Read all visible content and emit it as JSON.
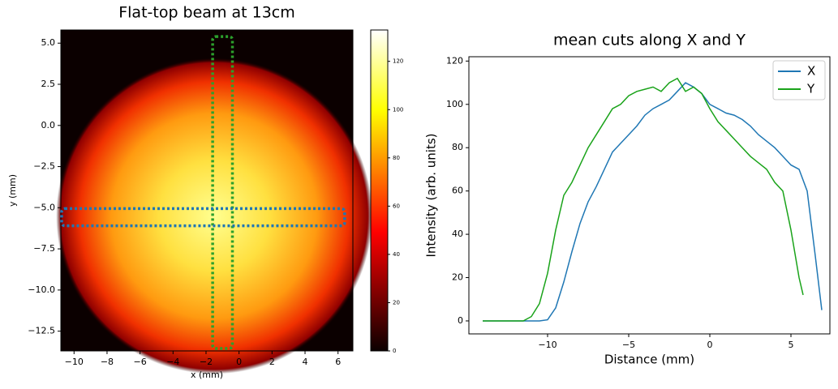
{
  "chart_data": [
    {
      "type": "image",
      "title": "Flat-top beam at 13cm",
      "xlabel": "x (mm)",
      "ylabel": "y (mm)",
      "xlim": [
        -10.8,
        6.9
      ],
      "ylim": [
        -13.7,
        5.8
      ],
      "xticks": [
        {
          "value": -10,
          "label": "−10"
        },
        {
          "value": -8,
          "label": "−8"
        },
        {
          "value": -6,
          "label": "−6"
        },
        {
          "value": -4,
          "label": "−4"
        },
        {
          "value": -2,
          "label": "−2"
        },
        0,
        2,
        4,
        6
      ],
      "yticks": [
        {
          "value": 5,
          "label": "5.0"
        },
        {
          "value": 2.5,
          "label": "2.5"
        },
        {
          "value": 0,
          "label": "0.0"
        },
        {
          "value": -2.5,
          "label": "−2.5"
        },
        {
          "value": -5,
          "label": "−5.0"
        },
        {
          "value": -7.5,
          "label": "−7.5"
        },
        {
          "value": -10,
          "label": "−10.0"
        },
        {
          "value": -12.5,
          "label": "−12.5"
        }
      ],
      "colorbar": {
        "lim": [
          0,
          133
        ],
        "ticks": [
          0,
          20,
          40,
          60,
          80,
          100,
          120
        ]
      },
      "regions": [
        {
          "color": "#2ca02c",
          "x": [
            -1.6,
            -0.4
          ],
          "y": [
            -13.55,
            5.4
          ]
        },
        {
          "color": "#1f77b4",
          "x": [
            -10.75,
            6.4
          ],
          "y": [
            -6.1,
            -5.05
          ]
        }
      ]
    },
    {
      "type": "line",
      "title": "mean cuts along X and Y",
      "xlabel": "Distance (mm)",
      "ylabel": "Intensity (arb. units)",
      "xlim": [
        -14.85,
        7.4
      ],
      "ylim": [
        -6,
        122
      ],
      "xticks": [
        {
          "value": -10,
          "label": "−10"
        },
        {
          "value": -5,
          "label": "−5"
        },
        0,
        5
      ],
      "yticks": [
        0,
        20,
        40,
        60,
        80,
        100,
        120
      ],
      "legend": "upper right",
      "series": [
        {
          "name": "X",
          "color": "#1f77b4",
          "x": [
            -14,
            -13,
            -12,
            -11,
            -10.5,
            -10,
            -9.5,
            -9,
            -8.5,
            -8,
            -7.5,
            -7,
            -6.5,
            -6,
            -5.5,
            -5,
            -4.5,
            -4,
            -3.5,
            -3,
            -2.5,
            -2,
            -1.5,
            -1,
            -0.5,
            0,
            0.5,
            1,
            1.5,
            2,
            2.5,
            3,
            3.5,
            4,
            4.5,
            5,
            5.5,
            6,
            6.5,
            6.9
          ],
          "values": [
            0,
            0,
            0,
            0,
            0,
            0.5,
            6,
            18,
            32,
            45,
            55,
            62,
            70,
            78,
            82,
            86,
            90,
            95,
            98,
            100,
            102,
            106,
            110,
            108,
            105,
            100,
            98,
            96,
            95,
            93,
            90,
            86,
            83,
            80,
            76,
            72,
            70,
            60,
            30,
            5
          ]
        },
        {
          "name": "Y",
          "color": "#1aa31a",
          "x": [
            -14,
            -11.5,
            -11,
            -10.5,
            -10,
            -9.5,
            -9,
            -8.5,
            -8,
            -7.5,
            -7,
            -6.5,
            -6,
            -5.5,
            -5,
            -4.5,
            -4,
            -3.5,
            -3,
            -2.5,
            -2,
            -1.5,
            -1,
            -0.5,
            0,
            0.5,
            1,
            1.5,
            2,
            2.5,
            3,
            3.5,
            4,
            4.5,
            5,
            5.5,
            5.75
          ],
          "values": [
            0,
            0,
            2,
            8,
            22,
            42,
            58,
            64,
            72,
            80,
            86,
            92,
            98,
            100,
            104,
            106,
            107,
            108,
            106,
            110,
            112,
            106,
            108,
            105,
            98,
            92,
            88,
            84,
            80,
            76,
            73,
            70,
            64,
            60,
            42,
            20,
            12
          ]
        }
      ]
    }
  ]
}
